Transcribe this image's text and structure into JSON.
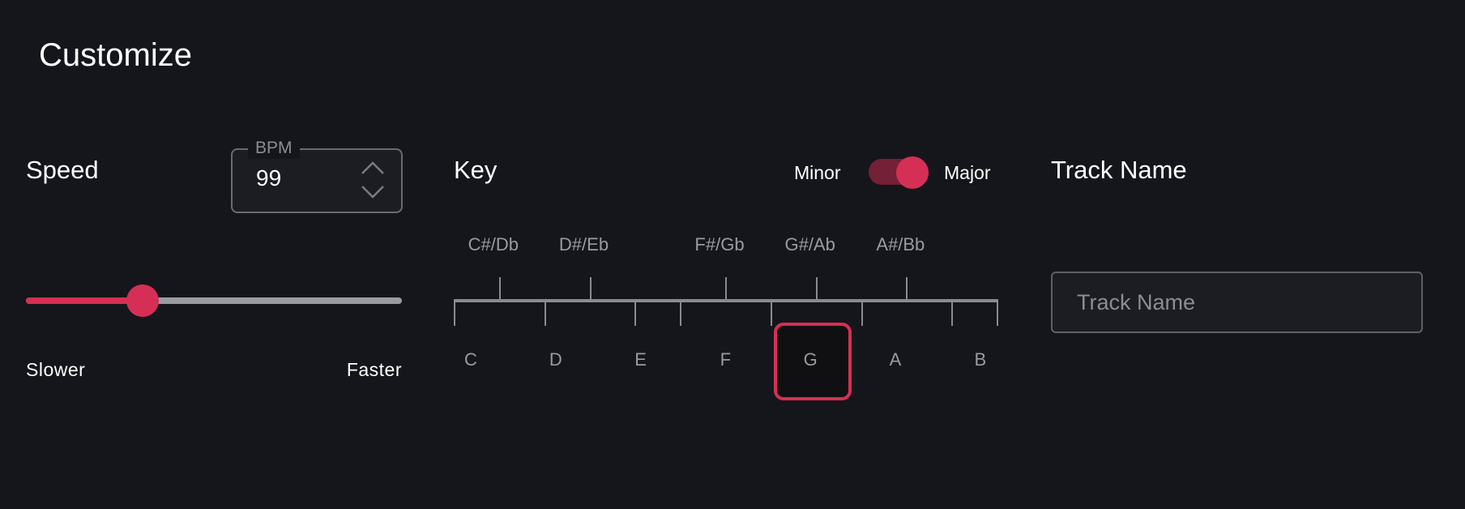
{
  "title": "Customize",
  "colors": {
    "background": "#15161b",
    "accent": "#d62f55",
    "accent_dim": "#742036"
  },
  "speed": {
    "label": "Speed",
    "bpm_label": "BPM",
    "bpm_value": "99",
    "spin_up_icon": "chevron-up-icon",
    "spin_down_icon": "chevron-down-icon",
    "slider_fraction": 0.31,
    "min_label": "Slower",
    "max_label": "Faster"
  },
  "key": {
    "label": "Key",
    "mode_off_label": "Minor",
    "mode_on_label": "Major",
    "mode_is_major": true,
    "sharps": [
      "C#/Db",
      "D#/Eb",
      "F#/Gb",
      "G#/Ab",
      "A#/Bb"
    ],
    "naturals": [
      "C",
      "D",
      "E",
      "F",
      "G",
      "A",
      "B"
    ],
    "selected": "G"
  },
  "track": {
    "label": "Track Name",
    "placeholder": "Track Name",
    "value": ""
  }
}
